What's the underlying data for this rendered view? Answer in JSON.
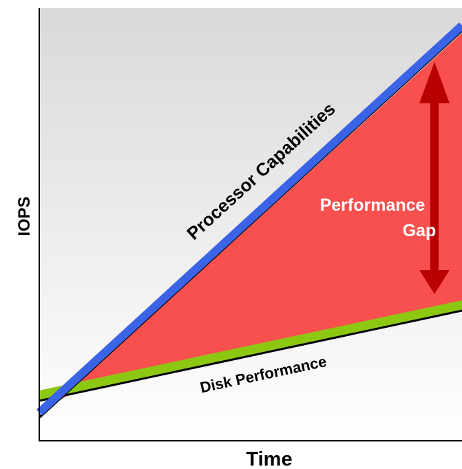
{
  "diagram": {
    "x_axis_label": "Time",
    "y_axis_label": "IOPS",
    "processor_label": "Processor Capabilities",
    "disk_label": "Disk Performance",
    "gap_label_line1": "Performance",
    "gap_label_line2": "Gap"
  },
  "colors": {
    "background_top": "#d9d9d9",
    "background_bottom": "#ffffff",
    "gap_fill": "#f84f4f",
    "processor_line": "#3a63e6",
    "disk_line": "#8cc812",
    "arrow": "#b90000",
    "axis": "#000000",
    "gap_text": "#ffffff"
  }
}
